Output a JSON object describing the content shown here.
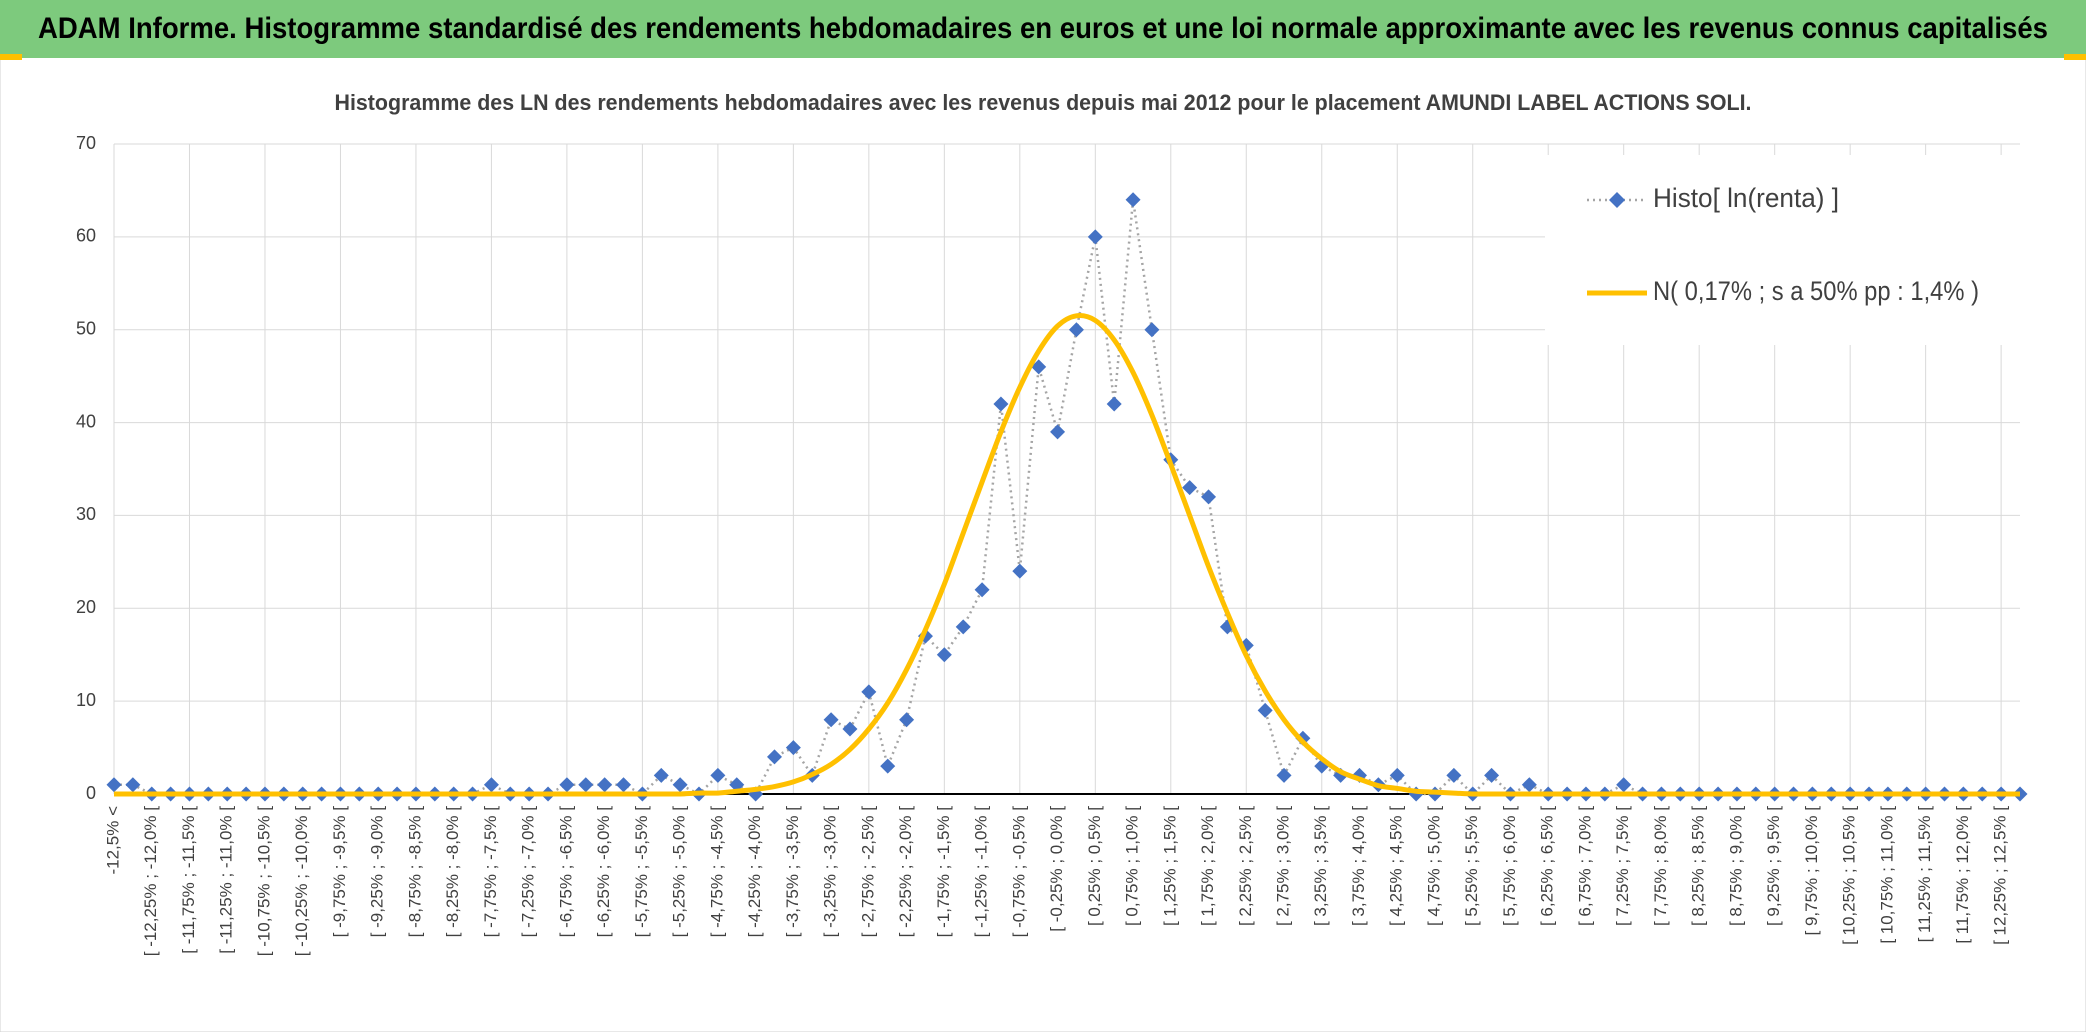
{
  "chart_data": {
    "type": "line",
    "title": "ADAM Informe. Histogramme standardisé des rendements hebdomadaires en euros et une loi normale approximante avec les revenus connus capitalisés",
    "subtitle": "Histogramme des LN des rendements hebdomadaires avec les revenus depuis mai 2012 pour le placement AMUNDI LABEL ACTIONS SOLI.",
    "categories": [
      "-12,5% <",
      null,
      "[ -12,25% ; -12,0% [",
      null,
      "[ -11,75% ; -11,5% [",
      null,
      "[ -11,25% ; -11,0% [",
      null,
      "[ -10,75% ; -10,5% [",
      null,
      "[ -10,25% ; -10,0% [",
      null,
      "[ -9,75% ; -9,5% [",
      null,
      "[ -9,25% ; -9,0% [",
      null,
      "[ -8,75% ; -8,5% [",
      null,
      "[ -8,25% ; -8,0% [",
      null,
      "[ -7,75% ; -7,5% [",
      null,
      "[ -7,25% ; -7,0% [",
      null,
      "[ -6,75% ; -6,5% [",
      null,
      "[ -6,25% ; -6,0% [",
      null,
      "[ -5,75% ; -5,5% [",
      null,
      "[ -5,25% ; -5,0% [",
      null,
      "[ -4,75% ; -4,5% [",
      null,
      "[ -4,25% ; -4,0% [",
      null,
      "[ -3,75% ; -3,5% [",
      null,
      "[ -3,25% ; -3,0% [",
      null,
      "[ -2,75% ; -2,5% [",
      null,
      "[ -2,25% ; -2,0% [",
      null,
      "[ -1,75% ; -1,5% [",
      null,
      "[ -1,25% ; -1,0% [",
      null,
      "[ -0,75% ; -0,5% [",
      null,
      "[ -0,25% ; 0,0% [",
      null,
      "[ 0,25% ; 0,5% [",
      null,
      "[ 0,75% ; 1,0% [",
      null,
      "[ 1,25% ; 1,5% [",
      null,
      "[ 1,75% ; 2,0% [",
      null,
      "[ 2,25% ; 2,5% [",
      null,
      "[ 2,75% ; 3,0% [",
      null,
      "[ 3,25% ; 3,5% [",
      null,
      "[ 3,75% ; 4,0% [",
      null,
      "[ 4,25% ; 4,5% [",
      null,
      "[ 4,75% ; 5,0% [",
      null,
      "[ 5,25% ; 5,5% [",
      null,
      "[ 5,75% ; 6,0% [",
      null,
      "[ 6,25% ; 6,5% [",
      null,
      "[ 6,75% ; 7,0% [",
      null,
      "[ 7,25% ; 7,5% [",
      null,
      "[ 7,75% ; 8,0% [",
      null,
      "[ 8,25% ; 8,5% [",
      null,
      "[ 8,75% ; 9,0% [",
      null,
      "[ 9,25% ; 9,5% [",
      null,
      "[ 9,75% ; 10,0% [",
      null,
      "[ 10,25% ; 10,5% [",
      null,
      "[ 10,75% ; 11,0% [",
      null,
      "[ 11,25% ; 11,5% [",
      null,
      "[ 11,75% ; 12,0% [",
      null,
      "[ 12,25% ; 12,5% [",
      null
    ],
    "series": [
      {
        "name": "Histo[ ln(renta) ]",
        "color": "#4472c4",
        "line_color": "#a5a5a5",
        "style": "dotted-markers",
        "values": [
          1,
          1,
          0,
          0,
          0,
          0,
          0,
          0,
          0,
          0,
          0,
          0,
          0,
          0,
          0,
          0,
          0,
          0,
          0,
          0,
          1,
          0,
          0,
          0,
          1,
          1,
          1,
          1,
          0,
          2,
          1,
          0,
          2,
          1,
          0,
          4,
          5,
          2,
          8,
          7,
          11,
          3,
          8,
          17,
          15,
          18,
          22,
          42,
          24,
          46,
          39,
          50,
          60,
          42,
          64,
          50,
          36,
          33,
          32,
          18,
          16,
          9,
          2,
          6,
          3,
          2,
          2,
          1,
          2,
          0,
          0,
          2,
          0,
          2,
          0,
          1,
          0,
          0,
          0,
          0,
          1,
          0,
          0,
          0,
          0,
          0,
          0,
          0,
          0,
          0,
          0,
          0,
          0,
          0,
          0,
          0,
          0,
          0,
          0,
          0,
          0,
          0
        ]
      },
      {
        "name": "N( 0,17% ; s a 50% pp : 1,4% )",
        "color": "#ffc000",
        "style": "smooth",
        "values": [
          0,
          0,
          0,
          0,
          0,
          0,
          0,
          0,
          0,
          0,
          0,
          0,
          0,
          0,
          0,
          0,
          0,
          0,
          0,
          0,
          0,
          0,
          0,
          0,
          0,
          0,
          0,
          0,
          0,
          0,
          0,
          0.1,
          0.1,
          0.3,
          0.5,
          0.8,
          1.3,
          2.1,
          3.2,
          4.8,
          7.0,
          9.8,
          13.4,
          17.7,
          22.6,
          28.1,
          33.6,
          39.0,
          43.8,
          47.7,
          50.4,
          51.5,
          51.0,
          48.9,
          45.4,
          40.8,
          35.5,
          30.0,
          24.5,
          19.5,
          14.9,
          11.1,
          8.0,
          5.6,
          3.8,
          2.4,
          1.6,
          0.9,
          0.6,
          0.3,
          0.2,
          0.1,
          0,
          0,
          0,
          0,
          0,
          0,
          0,
          0,
          0,
          0,
          0,
          0,
          0,
          0,
          0,
          0,
          0,
          0,
          0,
          0,
          0,
          0,
          0,
          0,
          0,
          0,
          0,
          0,
          0,
          0
        ]
      }
    ],
    "ylim": [
      0,
      70
    ],
    "yticks": [
      0,
      10,
      20,
      30,
      40,
      50,
      60,
      70
    ],
    "grid": true,
    "legend": "top-right"
  }
}
